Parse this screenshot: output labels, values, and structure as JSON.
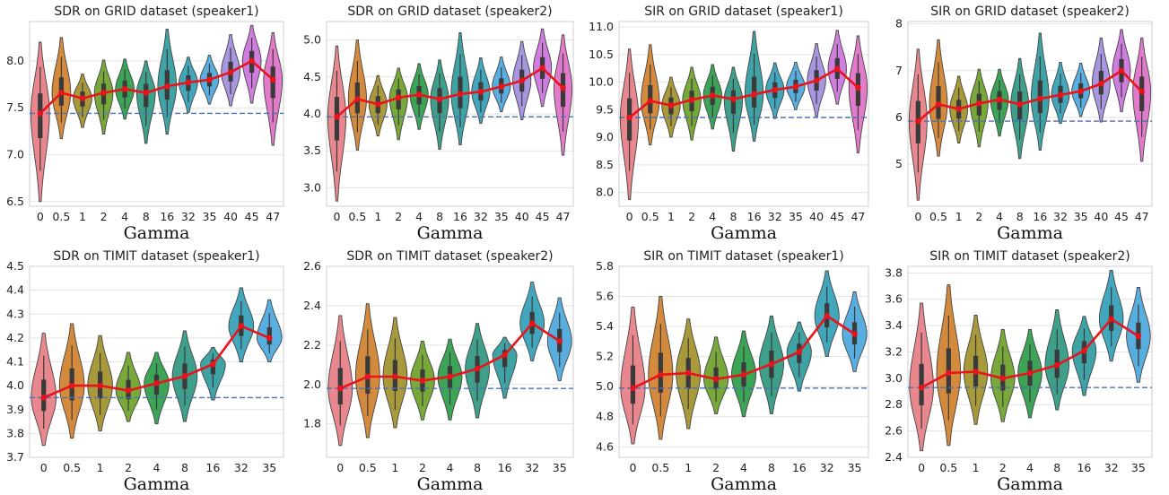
{
  "chart_data": [
    {
      "type": "violin",
      "title": "SDR on GRID dataset (speaker1)",
      "xlabel": "Gamma",
      "categories": [
        "0",
        "0.5",
        "1",
        "2",
        "4",
        "8",
        "16",
        "32",
        "35",
        "40",
        "45",
        "47"
      ],
      "yticks": [
        "6.5",
        "7.0",
        "7.5",
        "8.0"
      ],
      "ylim": [
        6.45,
        8.42
      ],
      "baseline": 7.44,
      "means": [
        7.44,
        7.66,
        7.6,
        7.66,
        7.7,
        7.66,
        7.73,
        7.77,
        7.8,
        7.88,
        8.0,
        7.8
      ],
      "ranges": [
        [
          6.5,
          8.2
        ],
        [
          7.17,
          8.25
        ],
        [
          7.29,
          7.86
        ],
        [
          7.22,
          8.01
        ],
        [
          7.38,
          8.02
        ],
        [
          7.12,
          8.0
        ],
        [
          7.22,
          8.34
        ],
        [
          7.45,
          8.04
        ],
        [
          7.54,
          8.06
        ],
        [
          7.52,
          8.28
        ],
        [
          7.55,
          8.38
        ],
        [
          7.1,
          8.3
        ]
      ]
    },
    {
      "type": "violin",
      "title": "SDR on GRID dataset (speaker2)",
      "xlabel": "Gamma",
      "categories": [
        "0",
        "0.5",
        "1",
        "2",
        "4",
        "8",
        "16",
        "32",
        "35",
        "40",
        "45",
        "47"
      ],
      "yticks": [
        "3.0",
        "3.5",
        "4.0",
        "4.5",
        "5.0"
      ],
      "ylim": [
        2.75,
        5.25
      ],
      "baseline": 3.96,
      "means": [
        3.96,
        4.2,
        4.13,
        4.22,
        4.26,
        4.2,
        4.27,
        4.3,
        4.37,
        4.45,
        4.62,
        4.35
      ],
      "ranges": [
        [
          2.82,
          4.92
        ],
        [
          3.51,
          5.0
        ],
        [
          3.7,
          4.52
        ],
        [
          3.65,
          4.62
        ],
        [
          3.79,
          4.68
        ],
        [
          3.52,
          4.73
        ],
        [
          3.58,
          5.1
        ],
        [
          3.87,
          4.76
        ],
        [
          4.03,
          4.77
        ],
        [
          3.92,
          4.98
        ],
        [
          4.1,
          5.15
        ],
        [
          3.44,
          5.07
        ]
      ]
    },
    {
      "type": "violin",
      "title": "SIR on GRID dataset (speaker1)",
      "xlabel": "Gamma",
      "categories": [
        "0",
        "0.5",
        "1",
        "2",
        "4",
        "8",
        "16",
        "32",
        "35",
        "40",
        "45",
        "47"
      ],
      "yticks": [
        "8.0",
        "8.5",
        "9.0",
        "9.5",
        "10.0",
        "10.5",
        "11.0"
      ],
      "ylim": [
        7.75,
        11.1
      ],
      "baseline": 9.36,
      "means": [
        9.36,
        9.66,
        9.58,
        9.68,
        9.76,
        9.69,
        9.78,
        9.86,
        9.92,
        10.03,
        10.24,
        9.9
      ],
      "ranges": [
        [
          7.87,
          10.6
        ],
        [
          8.86,
          10.68
        ],
        [
          9.0,
          10.09
        ],
        [
          8.95,
          10.27
        ],
        [
          9.15,
          10.32
        ],
        [
          8.75,
          10.27
        ],
        [
          8.93,
          10.92
        ],
        [
          9.34,
          10.35
        ],
        [
          9.5,
          10.36
        ],
        [
          9.38,
          10.7
        ],
        [
          9.6,
          10.94
        ],
        [
          8.72,
          10.84
        ]
      ]
    },
    {
      "type": "violin",
      "title": "SIR on GRID dataset (speaker2)",
      "xlabel": "Gamma",
      "categories": [
        "0",
        "0.5",
        "1",
        "2",
        "4",
        "8",
        "16",
        "32",
        "35",
        "40",
        "45",
        "47"
      ],
      "yticks": [
        "5",
        "6",
        "7",
        "8"
      ],
      "ylim": [
        4.1,
        8.05
      ],
      "baseline": 5.92,
      "means": [
        5.92,
        6.28,
        6.18,
        6.3,
        6.38,
        6.28,
        6.4,
        6.48,
        6.56,
        6.72,
        7.0,
        6.55
      ],
      "ranges": [
        [
          4.23,
          7.46
        ],
        [
          5.17,
          7.66
        ],
        [
          5.45,
          6.88
        ],
        [
          5.37,
          7.03
        ],
        [
          5.6,
          7.03
        ],
        [
          5.12,
          7.26
        ],
        [
          5.3,
          7.8
        ],
        [
          5.87,
          7.18
        ],
        [
          6.02,
          7.16
        ],
        [
          5.9,
          7.7
        ],
        [
          6.12,
          7.88
        ],
        [
          5.06,
          7.7
        ]
      ]
    },
    {
      "type": "violin",
      "title": "SDR on TIMIT dataset (speaker1)",
      "xlabel": "Gamma",
      "categories": [
        "0",
        "0.5",
        "1",
        "2",
        "4",
        "8",
        "16",
        "32",
        "35"
      ],
      "yticks": [
        "3.7",
        "3.8",
        "3.9",
        "4.0",
        "4.1",
        "4.2",
        "4.3",
        "4.4",
        "4.5"
      ],
      "ylim": [
        3.7,
        4.5
      ],
      "baseline": 3.95,
      "means": [
        3.95,
        4.0,
        4.0,
        3.98,
        4.01,
        4.04,
        4.09,
        4.25,
        4.2
      ],
      "ranges": [
        [
          3.75,
          4.22
        ],
        [
          3.78,
          4.26
        ],
        [
          3.81,
          4.21
        ],
        [
          3.85,
          4.14
        ],
        [
          3.84,
          4.14
        ],
        [
          3.85,
          4.23
        ],
        [
          3.94,
          4.16
        ],
        [
          4.1,
          4.41
        ],
        [
          4.1,
          4.36
        ]
      ]
    },
    {
      "type": "violin",
      "title": "SDR on TIMIT dataset (speaker2)",
      "xlabel": "Gamma",
      "categories": [
        "0",
        "0.5",
        "1",
        "2",
        "4",
        "8",
        "16",
        "32",
        "35"
      ],
      "yticks": [
        "1.8",
        "2.0",
        "2.2",
        "2.4",
        "2.6"
      ],
      "ylim": [
        1.63,
        2.6
      ],
      "baseline": 1.98,
      "means": [
        1.98,
        2.04,
        2.04,
        2.02,
        2.04,
        2.08,
        2.15,
        2.31,
        2.22
      ],
      "ranges": [
        [
          1.69,
          2.35
        ],
        [
          1.73,
          2.41
        ],
        [
          1.78,
          2.34
        ],
        [
          1.82,
          2.22
        ],
        [
          1.82,
          2.23
        ],
        [
          1.83,
          2.31
        ],
        [
          1.93,
          2.24
        ],
        [
          2.12,
          2.52
        ],
        [
          2.02,
          2.44
        ]
      ]
    },
    {
      "type": "violin",
      "title": "SIR on TIMIT dataset (speaker1)",
      "xlabel": "Gamma",
      "categories": [
        "0",
        "0.5",
        "1",
        "2",
        "4",
        "8",
        "16",
        "32",
        "35"
      ],
      "yticks": [
        "4.6",
        "4.8",
        "5.0",
        "5.2",
        "5.4",
        "5.6",
        "5.8"
      ],
      "ylim": [
        4.53,
        5.8
      ],
      "baseline": 4.99,
      "means": [
        4.99,
        5.08,
        5.09,
        5.05,
        5.08,
        5.15,
        5.23,
        5.47,
        5.35
      ],
      "ranges": [
        [
          4.62,
          5.53
        ],
        [
          4.65,
          5.6
        ],
        [
          4.72,
          5.45
        ],
        [
          4.82,
          5.33
        ],
        [
          4.8,
          5.37
        ],
        [
          4.82,
          5.47
        ],
        [
          4.97,
          5.43
        ],
        [
          5.2,
          5.77
        ],
        [
          5.1,
          5.63
        ]
      ]
    },
    {
      "type": "violin",
      "title": "SIR on TIMIT dataset (speaker2)",
      "xlabel": "Gamma",
      "categories": [
        "0",
        "0.5",
        "1",
        "2",
        "4",
        "8",
        "16",
        "32",
        "35"
      ],
      "yticks": [
        "2.4",
        "2.6",
        "2.8",
        "3.0",
        "3.2",
        "3.4",
        "3.6",
        "3.8"
      ],
      "ylim": [
        2.4,
        3.85
      ],
      "baseline": 2.93,
      "means": [
        2.93,
        3.04,
        3.05,
        3.0,
        3.04,
        3.1,
        3.21,
        3.45,
        3.32
      ],
      "ranges": [
        [
          2.45,
          3.57
        ],
        [
          2.49,
          3.71
        ],
        [
          2.65,
          3.48
        ],
        [
          2.67,
          3.37
        ],
        [
          2.7,
          3.37
        ],
        [
          2.76,
          3.52
        ],
        [
          2.87,
          3.47
        ],
        [
          3.13,
          3.82
        ],
        [
          2.97,
          3.69
        ]
      ]
    }
  ],
  "colors": {
    "violins": [
      "#e8878e",
      "#d48a3d",
      "#a8993b",
      "#78a83a",
      "#3ba457",
      "#3ea08a",
      "#3fa3a5",
      "#42a7bd",
      "#58aede",
      "#a896e0",
      "#cf7ee0",
      "#e37bcb"
    ],
    "mean_line": "#e8141c",
    "baseline": "#4c72b0"
  }
}
